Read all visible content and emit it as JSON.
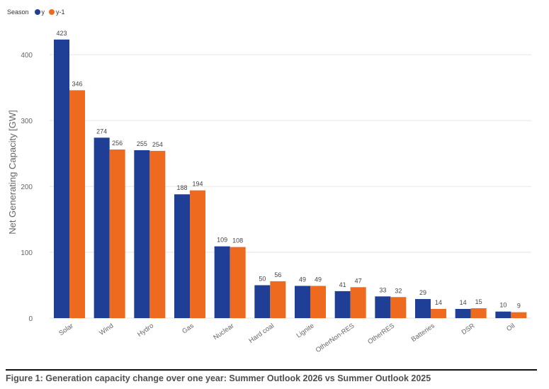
{
  "legend": {
    "title": "Season",
    "items": [
      {
        "label": "y",
        "color": "#1f3e96"
      },
      {
        "label": "y-1",
        "color": "#ee6a1f"
      }
    ]
  },
  "caption": "Figure 1: Generation capacity change over one year: Summer Outlook 2026 vs Summer Outlook 2025",
  "chart_data": {
    "type": "bar",
    "title": "",
    "xlabel": "",
    "ylabel": "Net Generating Capacity [GW]",
    "ylim": [
      0,
      440
    ],
    "yticks": [
      0,
      100,
      200,
      300,
      400
    ],
    "grid": true,
    "legend_position": "top-left",
    "categories": [
      "Solar",
      "Wind",
      "Hydro",
      "Gas",
      "Nuclear",
      "Hard coal",
      "Lignite",
      "OtherNon-RES",
      "OtherRES",
      "Batteries",
      "DSR",
      "Oil"
    ],
    "series": [
      {
        "name": "y",
        "color": "#1f3e96",
        "values": [
          423,
          274,
          255,
          188,
          109,
          50,
          49,
          41,
          33,
          29,
          14,
          10
        ]
      },
      {
        "name": "y-1",
        "color": "#ee6a1f",
        "values": [
          346,
          256,
          254,
          194,
          108,
          56,
          49,
          47,
          32,
          14,
          15,
          9
        ]
      }
    ]
  }
}
